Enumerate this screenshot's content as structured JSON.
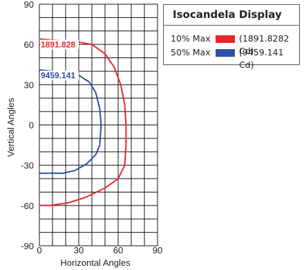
{
  "chart_data": {
    "type": "line",
    "xlabel": "Horizontal Angles",
    "ylabel": "Vertical Angles",
    "xlim": [
      0,
      90
    ],
    "ylim": [
      -90,
      90
    ],
    "x_ticks": [
      "0",
      "30",
      "60",
      "90"
    ],
    "y_ticks": [
      "90",
      "60",
      "30",
      "0",
      "-30",
      "-60",
      "-90"
    ],
    "grid": true,
    "series": [
      {
        "name": "10% Max",
        "label": "1891.828",
        "value_text": "(1891.8282 Cd)",
        "color": "#e8262b",
        "points": [
          [
            0,
            64
          ],
          [
            15,
            63
          ],
          [
            28,
            62
          ],
          [
            40,
            60
          ],
          [
            50,
            53
          ],
          [
            57,
            43
          ],
          [
            62,
            30
          ],
          [
            65,
            15
          ],
          [
            66,
            0
          ],
          [
            66,
            -15
          ],
          [
            65,
            -30
          ],
          [
            60,
            -40
          ],
          [
            50,
            -47
          ],
          [
            35,
            -54
          ],
          [
            22,
            -58
          ],
          [
            8,
            -60
          ],
          [
            0,
            -60
          ]
        ]
      },
      {
        "name": "50% Max",
        "label": "9459.141",
        "value_text": "(9459.141 Cd)",
        "color": "#2e4fa3",
        "points": [
          [
            0,
            41
          ],
          [
            10,
            40
          ],
          [
            20,
            39
          ],
          [
            30,
            37
          ],
          [
            38,
            32
          ],
          [
            43,
            24
          ],
          [
            46,
            12
          ],
          [
            47,
            0
          ],
          [
            46,
            -15
          ],
          [
            43,
            -22
          ],
          [
            36,
            -29
          ],
          [
            27,
            -34
          ],
          [
            18,
            -36
          ],
          [
            8,
            -36
          ],
          [
            0,
            -36
          ]
        ]
      }
    ]
  },
  "legend": {
    "title": "Isocandela Display"
  }
}
